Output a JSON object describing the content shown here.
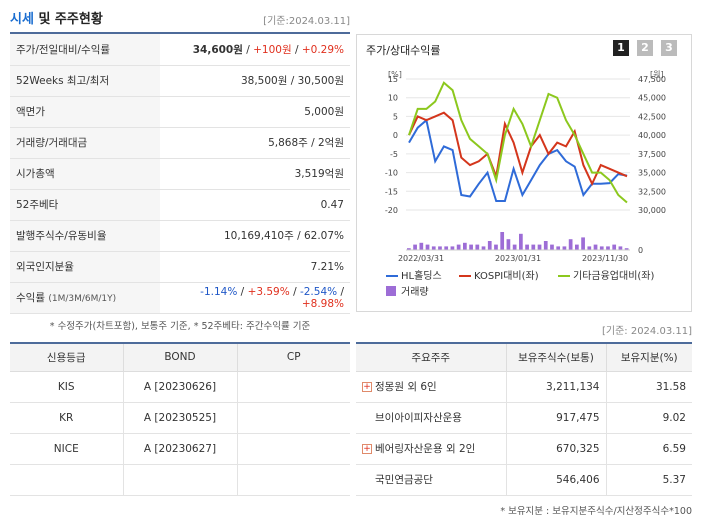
{
  "header": {
    "title_accent": "시세",
    "title_rest": " 및 주주현황",
    "date": "[기준:2024.03.11]"
  },
  "quote_rows": [
    {
      "label": "주가/전일대비/수익률",
      "price": "34,600원",
      "sep1": " / ",
      "change": "+100원",
      "sep2": " / ",
      "rate": "+0.29%"
    },
    {
      "label": "52Weeks 최고/최저",
      "value": "38,500원 / 30,500원"
    },
    {
      "label": "액면가",
      "value": "5,000원"
    },
    {
      "label": "거래량/거래대금",
      "value": "5,868주 / 2억원"
    },
    {
      "label": "시가총액",
      "value": "3,519억원"
    },
    {
      "label": "52주베타",
      "value": "0.47"
    },
    {
      "label": "발행주식수/유동비율",
      "value": "10,169,410주 / 62.07%"
    },
    {
      "label": "외국인지분율",
      "value": "7.21%"
    }
  ],
  "return_row": {
    "label": "수익률",
    "periods": "(1M/3M/6M/1Y)",
    "r1": "-1.14%",
    "r2": "+3.59%",
    "r3": "-2.54%",
    "r4": "+8.98%",
    "sep": "/"
  },
  "note1": "* 수정주가(차트포함), 보통주 기준, * 52주베타: 주간수익률 기준",
  "chart_panel": {
    "title": "주가/상대수익률",
    "pages": [
      "1",
      "2",
      "3"
    ],
    "date": "[기준: 2024.03.11]"
  },
  "chart_data": {
    "type": "line",
    "left_axis_unit": "[%]",
    "right_axis_unit": "[원]",
    "left_ticks": [
      15,
      10,
      5,
      0,
      -5,
      -10,
      -15,
      -20
    ],
    "right_ticks": [
      "47,500",
      "45,000",
      "42,500",
      "40,000",
      "37,500",
      "35,000",
      "32,500",
      "30,000"
    ],
    "x_ticks": [
      "2022/03/31",
      "2023/01/31",
      "2023/11/30"
    ],
    "volume_tick": "0",
    "series": [
      {
        "name": "HL홀딩스",
        "color": "#2f6bd8",
        "axis": "right",
        "values": [
          39000,
          41000,
          42000,
          36500,
          38500,
          38000,
          32000,
          31800,
          33500,
          35000,
          31200,
          31200,
          35500,
          32000,
          34000,
          36000,
          37500,
          38000,
          36500,
          35800,
          32000,
          33500,
          33500,
          33600,
          34800,
          34600
        ]
      },
      {
        "name": "KOSPI대비(좌)",
        "color": "#d4361c",
        "axis": "left",
        "values": [
          0,
          5,
          4,
          5,
          6,
          4,
          -6,
          -8,
          -7,
          -5,
          -11,
          3,
          -2,
          -10,
          -3,
          0,
          -5,
          -2,
          -3,
          1,
          -8,
          -13,
          -8,
          -9,
          -10,
          -11
        ]
      },
      {
        "name": "기타금융업대비(좌)",
        "color": "#8cc81e",
        "axis": "left",
        "values": [
          0,
          7,
          7,
          9,
          14,
          12,
          4,
          -1,
          -3,
          -5,
          -12,
          0,
          7,
          3,
          -3,
          4,
          11,
          10,
          4,
          0,
          -5,
          -10,
          -10,
          -12,
          -16,
          -18
        ]
      }
    ],
    "volume": {
      "name": "거래량",
      "color": "#9d6dd6",
      "values": [
        1,
        3,
        4,
        3,
        2,
        2,
        2,
        2,
        3,
        4,
        3,
        3,
        2,
        5,
        3,
        10,
        6,
        3,
        9,
        3,
        3,
        3,
        5,
        3,
        2,
        2,
        6,
        3,
        7,
        2,
        3,
        2,
        2,
        3,
        2,
        1
      ]
    },
    "ylim_left": [
      -20,
      15
    ],
    "ylim_right": [
      30000,
      47500
    ],
    "grid": true
  },
  "credit": {
    "headers": [
      "신용등급",
      "BOND",
      "CP"
    ],
    "rows": [
      {
        "agency": "KIS",
        "bond": "A  [20230626]",
        "cp": ""
      },
      {
        "agency": "KR",
        "bond": "A  [20230525]",
        "cp": ""
      },
      {
        "agency": "NICE",
        "bond": "A  [20230627]",
        "cp": ""
      },
      {
        "agency": "",
        "bond": "",
        "cp": ""
      }
    ]
  },
  "holders": {
    "headers": [
      "주요주주",
      "보유주식수(보통)",
      "보유지분(%)"
    ],
    "rows": [
      {
        "name": "정몽원 외 6인",
        "expand": true,
        "shares": "3,211,134",
        "pct": "31.58"
      },
      {
        "name": "브이아이피자산운용",
        "expand": false,
        "shares": "917,475",
        "pct": "9.02"
      },
      {
        "name": "베어링자산운용 외 2인",
        "expand": true,
        "shares": "670,325",
        "pct": "6.59"
      },
      {
        "name": "국민연금공단",
        "expand": false,
        "shares": "546,406",
        "pct": "5.37"
      }
    ],
    "plus_symbol": "+",
    "note": "* 보유지분 : 보유지분주식수/지산정주식수*100"
  }
}
